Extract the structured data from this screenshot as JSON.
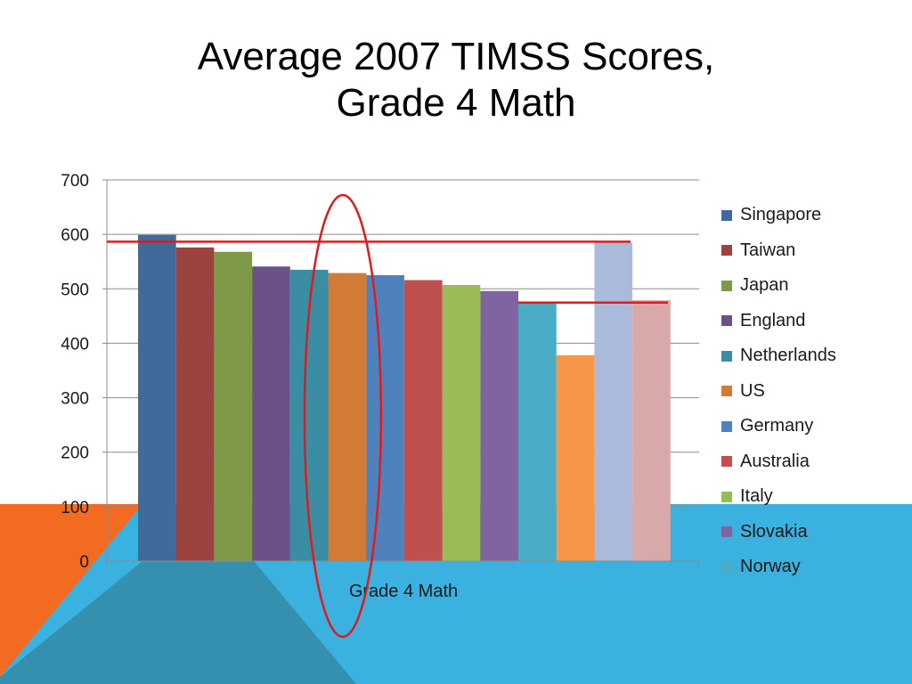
{
  "slide": {
    "title_line1": "Average 2007 TIMSS Scores,",
    "title_line2": "Grade 4 Math",
    "colors": {
      "background": "#ffffff",
      "accent_orange": "#f26b21",
      "accent_blue": "#3bb1df",
      "accent_teal": "#3590b0",
      "annotation": "#e31a1c"
    }
  },
  "chart_data": {
    "type": "bar",
    "title": "",
    "xlabel": "Grade 4 Math",
    "ylabel": "",
    "categories": [
      "Grade 4 Math"
    ],
    "ylim": [
      0,
      700
    ],
    "yticks": [
      0,
      100,
      200,
      300,
      400,
      500,
      600,
      700
    ],
    "grid": true,
    "legend_position": "right",
    "series": [
      {
        "name": "Singapore",
        "values": [
          599
        ],
        "color": "#3f6a9a"
      },
      {
        "name": "Taiwan",
        "values": [
          576
        ],
        "color": "#9c4240"
      },
      {
        "name": "Japan",
        "values": [
          568
        ],
        "color": "#7e9a48"
      },
      {
        "name": "England",
        "values": [
          541
        ],
        "color": "#6a5188"
      },
      {
        "name": "Netherlands",
        "values": [
          535
        ],
        "color": "#3a8ea3"
      },
      {
        "name": "US",
        "values": [
          529
        ],
        "color": "#d07b36"
      },
      {
        "name": "Germany",
        "values": [
          525
        ],
        "color": "#4f81bd"
      },
      {
        "name": "Australia",
        "values": [
          516
        ],
        "color": "#c0504d"
      },
      {
        "name": "Italy",
        "values": [
          507
        ],
        "color": "#9bbb59"
      },
      {
        "name": "Slovakia",
        "values": [
          496
        ],
        "color": "#8064a2"
      },
      {
        "name": "Norway",
        "values": [
          473
        ],
        "color": "#4bacc6"
      },
      {
        "name": "",
        "values": [
          378
        ],
        "color": "#f79646"
      },
      {
        "name": "",
        "values": [
          585
        ],
        "color": "#a9badb"
      },
      {
        "name": "",
        "values": [
          479
        ],
        "color": "#d9a9a9"
      }
    ],
    "annotations": {
      "reference_lines": [
        585,
        473
      ],
      "highlighted_series": "US",
      "color": "#e31a1c"
    }
  }
}
